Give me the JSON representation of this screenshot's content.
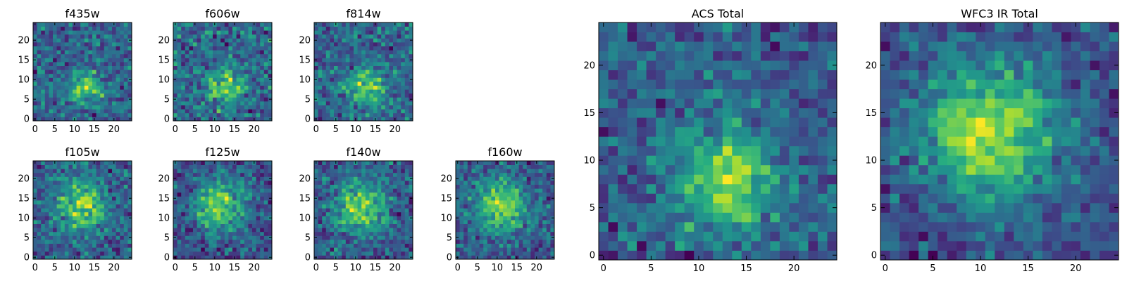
{
  "chart_data": [
    {
      "type": "heatmap",
      "title": "f435w",
      "xlabel": "",
      "ylabel": "",
      "xlim": [
        -0.5,
        24.5
      ],
      "ylim": [
        -0.5,
        24.5
      ],
      "x_ticks": [
        0,
        5,
        10,
        15,
        20
      ],
      "y_ticks": [
        0,
        5,
        10,
        15,
        20
      ],
      "grid_size": 25,
      "colormap": "viridis",
      "source_center": [
        13,
        8
      ],
      "source_sigma": 3.0,
      "noise_level": 0.62,
      "seed": 11
    },
    {
      "type": "heatmap",
      "title": "f606w",
      "xlabel": "",
      "ylabel": "",
      "xlim": [
        -0.5,
        24.5
      ],
      "ylim": [
        -0.5,
        24.5
      ],
      "x_ticks": [
        0,
        5,
        10,
        15,
        20
      ],
      "y_ticks": [
        0,
        5,
        10,
        15,
        20
      ],
      "grid_size": 25,
      "colormap": "viridis",
      "source_center": [
        13,
        8
      ],
      "source_sigma": 3.0,
      "noise_level": 0.62,
      "seed": 23
    },
    {
      "type": "heatmap",
      "title": "f814w",
      "xlabel": "",
      "ylabel": "",
      "xlim": [
        -0.5,
        24.5
      ],
      "ylim": [
        -0.5,
        24.5
      ],
      "x_ticks": [
        0,
        5,
        10,
        15,
        20
      ],
      "y_ticks": [
        0,
        5,
        10,
        15,
        20
      ],
      "grid_size": 25,
      "colormap": "viridis",
      "source_center": [
        13,
        8
      ],
      "source_sigma": 3.2,
      "noise_level": 0.58,
      "seed": 37
    },
    {
      "type": "heatmap",
      "title": "f105w",
      "xlabel": "",
      "ylabel": "",
      "xlim": [
        -0.5,
        24.5
      ],
      "ylim": [
        -0.5,
        24.5
      ],
      "x_ticks": [
        0,
        5,
        10,
        15,
        20
      ],
      "y_ticks": [
        0,
        5,
        10,
        15,
        20
      ],
      "grid_size": 25,
      "colormap": "viridis",
      "source_center": [
        12,
        13
      ],
      "source_sigma": 4.2,
      "noise_level": 0.48,
      "seed": 41
    },
    {
      "type": "heatmap",
      "title": "f125w",
      "xlabel": "",
      "ylabel": "",
      "xlim": [
        -0.5,
        24.5
      ],
      "ylim": [
        -0.5,
        24.5
      ],
      "x_ticks": [
        0,
        5,
        10,
        15,
        20
      ],
      "y_ticks": [
        0,
        5,
        10,
        15,
        20
      ],
      "grid_size": 25,
      "colormap": "viridis",
      "source_center": [
        11,
        13
      ],
      "source_sigma": 4.5,
      "noise_level": 0.42,
      "seed": 53
    },
    {
      "type": "heatmap",
      "title": "f140w",
      "xlabel": "",
      "ylabel": "",
      "xlim": [
        -0.5,
        24.5
      ],
      "ylim": [
        -0.5,
        24.5
      ],
      "x_ticks": [
        0,
        5,
        10,
        15,
        20
      ],
      "y_ticks": [
        0,
        5,
        10,
        15,
        20
      ],
      "grid_size": 25,
      "colormap": "viridis",
      "source_center": [
        11,
        13
      ],
      "source_sigma": 4.5,
      "noise_level": 0.44,
      "seed": 67
    },
    {
      "type": "heatmap",
      "title": "f160w",
      "xlabel": "",
      "ylabel": "",
      "xlim": [
        -0.5,
        24.5
      ],
      "ylim": [
        -0.5,
        24.5
      ],
      "x_ticks": [
        0,
        5,
        10,
        15,
        20
      ],
      "y_ticks": [
        0,
        5,
        10,
        15,
        20
      ],
      "grid_size": 25,
      "colormap": "viridis",
      "source_center": [
        11,
        13
      ],
      "source_sigma": 4.6,
      "noise_level": 0.44,
      "seed": 79
    },
    {
      "type": "heatmap",
      "title": "ACS Total",
      "xlabel": "",
      "ylabel": "",
      "xlim": [
        -0.5,
        24.5
      ],
      "ylim": [
        -0.5,
        24.5
      ],
      "x_ticks": [
        0,
        5,
        10,
        15,
        20
      ],
      "y_ticks": [
        0,
        5,
        10,
        15,
        20
      ],
      "grid_size": 25,
      "colormap": "viridis",
      "source_center": [
        13,
        8
      ],
      "source_sigma": 3.6,
      "noise_level": 0.4,
      "seed": 97
    },
    {
      "type": "heatmap",
      "title": "WFC3 IR Total",
      "xlabel": "",
      "ylabel": "",
      "xlim": [
        -0.5,
        24.5
      ],
      "ylim": [
        -0.5,
        24.5
      ],
      "x_ticks": [
        0,
        5,
        10,
        15,
        20
      ],
      "y_ticks": [
        0,
        5,
        10,
        15,
        20
      ],
      "grid_size": 25,
      "colormap": "viridis",
      "source_center": [
        11,
        13
      ],
      "source_sigma": 5.0,
      "noise_level": 0.3,
      "seed": 113
    }
  ]
}
